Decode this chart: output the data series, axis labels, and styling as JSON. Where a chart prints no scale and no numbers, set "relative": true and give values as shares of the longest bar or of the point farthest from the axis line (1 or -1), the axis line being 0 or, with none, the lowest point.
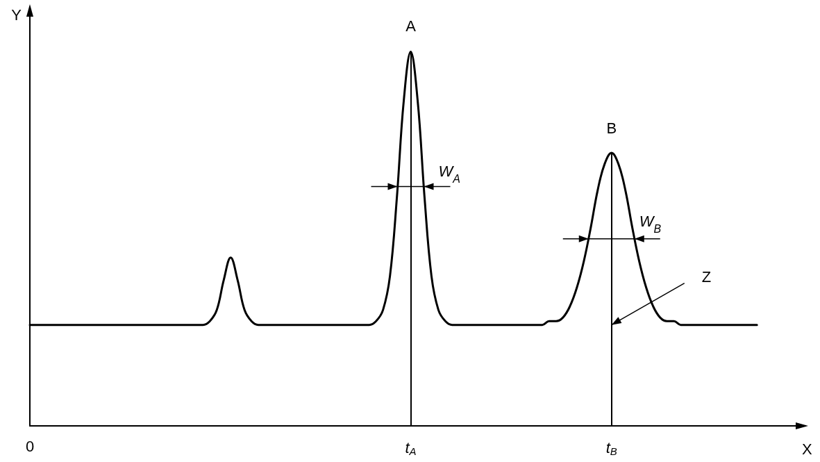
{
  "chart_data": {
    "type": "line",
    "relative": true,
    "xlabel": "X",
    "ylabel": "Y",
    "color": "#000000",
    "marker": "none",
    "line_style": "solid",
    "categories": [
      "0",
      null,
      null,
      null,
      null,
      null,
      null,
      null,
      null,
      null,
      null,
      null,
      null,
      null,
      null,
      null,
      null,
      null,
      null,
      null,
      null,
      null,
      null,
      null,
      null,
      null,
      null,
      null,
      null,
      null,
      null,
      null,
      null,
      null,
      null,
      null,
      null,
      null,
      null,
      null,
      null,
      null,
      null,
      null,
      null,
      null,
      null,
      null,
      null,
      null,
      null,
      null,
      null,
      null,
      null,
      "t$_{A}$",
      null,
      null,
      null,
      null,
      null,
      null,
      null,
      null,
      null,
      null,
      null,
      null,
      null,
      null,
      null,
      null,
      null,
      null,
      null,
      null,
      null,
      null,
      null,
      null,
      null,
      null,
      null,
      null,
      "t$_{B}$",
      null,
      null,
      null,
      null,
      null,
      null,
      null,
      null,
      null,
      null,
      null,
      null,
      null,
      null,
      null,
      null,
      null,
      null,
      null,
      null,
      null,
      null,
      null,
      null,
      null,
      null,
      null,
      null
    ],
    "values": [
      0.27,
      0.27,
      0.27,
      0.27,
      0.27,
      0.27,
      0.27,
      0.27,
      0.27,
      0.27,
      0.27,
      0.27,
      0.27,
      0.27,
      0.27,
      0.27,
      0.27,
      0.27,
      0.27,
      0.27,
      0.27,
      0.27,
      0.27,
      0.27,
      0.27,
      0.27,
      0.28,
      0.31,
      0.39,
      0.45,
      0.39,
      0.31,
      0.28,
      0.27,
      0.27,
      0.27,
      0.27,
      0.27,
      0.27,
      0.27,
      0.27,
      0.27,
      0.27,
      0.27,
      0.27,
      0.27,
      0.27,
      0.27,
      0.27,
      0.27,
      0.28,
      0.31,
      0.4,
      0.61,
      0.87,
      1,
      0.87,
      0.61,
      0.4,
      0.31,
      0.28,
      0.27,
      0.27,
      0.27,
      0.27,
      0.27,
      0.27,
      0.27,
      0.27,
      0.27,
      0.27,
      0.27,
      0.27,
      0.27,
      0.27,
      0.28,
      0.28,
      0.29,
      0.32,
      0.37,
      0.44,
      0.53,
      0.63,
      0.7,
      0.73,
      0.7,
      0.63,
      0.53,
      0.44,
      0.37,
      0.32,
      0.29,
      0.28,
      0.28,
      0.27,
      0.27,
      0.27,
      0.27,
      0.27,
      0.27,
      0.27,
      0.27,
      0.27,
      0.27,
      0.27,
      0.27,
      null,
      null,
      null,
      null,
      null,
      null,
      null
    ],
    "ref_lines": [
      {
        "axis": "x",
        "value": "t$_{A}$"
      },
      {
        "axis": "x",
        "value": "t$_{B}$"
      }
    ],
    "annotations": [
      {
        "text": "A",
        "x": "t$_{A}$",
        "y": 1
      },
      {
        "text": "B",
        "x": "t$_{B}$",
        "y": 0.73
      },
      {
        "text": "W$_{A}$",
        "x": "t$_{A}$",
        "y": 0.64
      },
      {
        "text": "W$_{B}$",
        "x": "t$_{B}$",
        "y": 0.5
      },
      {
        "text": "Z",
        "x": "t$_{B}$",
        "y": 0.27
      }
    ]
  }
}
